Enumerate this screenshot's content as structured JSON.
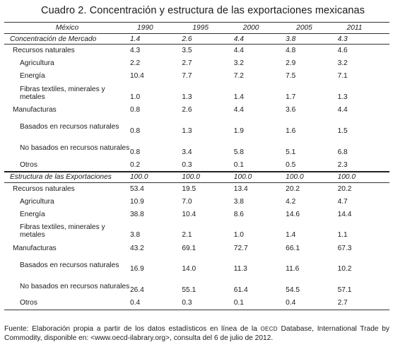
{
  "caption": "Cuadro 2. Concentración y  estructura de las exportaciones mexicanas",
  "header": {
    "label": "México",
    "years": [
      "1990",
      "1995",
      "2000",
      "2005",
      "2011"
    ]
  },
  "sections": [
    {
      "title": "Concentración de Mercado",
      "values": [
        "1.4",
        "2.6",
        "4.4",
        "3.8",
        "4.3"
      ],
      "rows": [
        {
          "label": "Recursos naturales",
          "level": 1,
          "values": [
            "4.3",
            "3.5",
            "4.4",
            "4.8",
            "4.6"
          ]
        },
        {
          "label": "Agricultura",
          "level": 2,
          "values": [
            "2.2",
            "2.7",
            "3.2",
            "2.9",
            "3.2"
          ]
        },
        {
          "label": "Energía",
          "level": 2,
          "values": [
            "10.4",
            "7.7",
            "7.2",
            "7.5",
            "7.1"
          ]
        },
        {
          "label": "Fibras textiles, minerales y metales",
          "level": 2,
          "values": [
            "1.0",
            "1.3",
            "1.4",
            "1.7",
            "1.3"
          ]
        },
        {
          "label": "Manufacturas",
          "level": 1,
          "values": [
            "0.8",
            "2.6",
            "4.4",
            "3.6",
            "4.4"
          ]
        },
        {
          "label": "Basados en recursos naturales",
          "level": 2,
          "values": [
            "0.8",
            "1.3",
            "1.9",
            "1.6",
            "1.5"
          ]
        },
        {
          "label": "No basados en recursos naturales",
          "level": 2,
          "values": [
            "0.8",
            "3.4",
            "5.8",
            "5.1",
            "6.8"
          ]
        },
        {
          "label": "Otros",
          "level": 2,
          "values": [
            "0.2",
            "0.3",
            "0.1",
            "0.5",
            "2.3"
          ]
        }
      ]
    },
    {
      "title": "Estructura de las Exportaciones",
      "values": [
        "100.0",
        "100.0",
        "100.0",
        "100.0",
        "100.0"
      ],
      "rows": [
        {
          "label": "Recursos naturales",
          "level": 1,
          "values": [
            "53.4",
            "19.5",
            "13.4",
            "20.2",
            "20.2"
          ]
        },
        {
          "label": "Agricultura",
          "level": 2,
          "values": [
            "10.9",
            "7.0",
            "3.8",
            "4.2",
            "4.7"
          ]
        },
        {
          "label": "Energía",
          "level": 2,
          "values": [
            "38.8",
            "10.4",
            "8.6",
            "14.6",
            "14.4"
          ]
        },
        {
          "label": "Fibras textiles, minerales y metales",
          "level": 2,
          "values": [
            "3.8",
            "2.1",
            "1.0",
            "1.4",
            "1.1"
          ]
        },
        {
          "label": "Manufacturas",
          "level": 1,
          "values": [
            "43.2",
            "69.1",
            "72.7",
            "66.1",
            "67.3"
          ]
        },
        {
          "label": "Basados en recursos naturales",
          "level": 2,
          "values": [
            "16.9",
            "14.0",
            "11.3",
            "11.6",
            "10.2"
          ]
        },
        {
          "label": "No basados en recursos naturales",
          "level": 2,
          "values": [
            "26.4",
            "55.1",
            "61.4",
            "54.5",
            "57.1"
          ]
        },
        {
          "label": "Otros",
          "level": 2,
          "values": [
            "0.4",
            "0.3",
            "0.1",
            "0.4",
            "2.7"
          ]
        }
      ]
    }
  ],
  "note": {
    "before": "Fuente: Elaboración propia a partir de los datos estadísticos en línea de la ",
    "abbr": "OECD",
    "after": " Database, International Trade by Commodity, disponible en: <www.oecd-ilabrary.org>, consulta del 6 de julio de 2012."
  }
}
